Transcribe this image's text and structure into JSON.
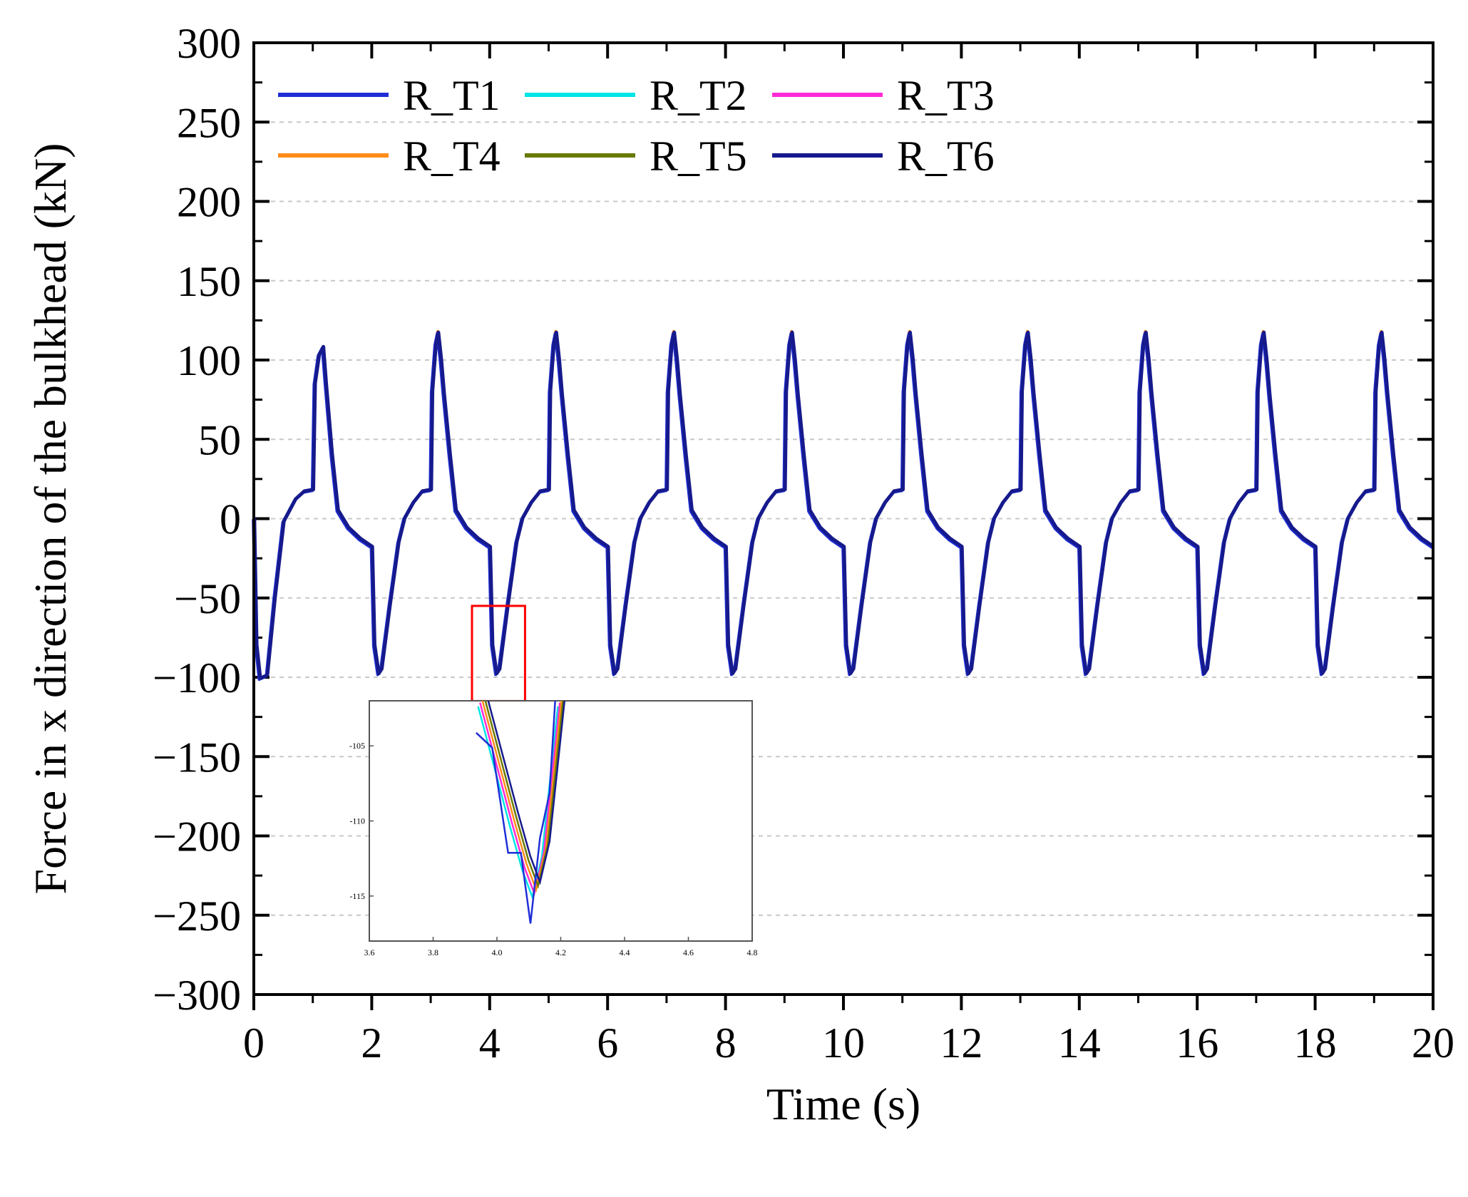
{
  "chart_data": {
    "type": "line",
    "title": "",
    "xlabel": "Time (s)",
    "ylabel": "Force in x direction of the bulkhead (kN)",
    "xlim": [
      0,
      20
    ],
    "ylim": [
      -300,
      300
    ],
    "xticks": [
      0,
      2,
      4,
      6,
      8,
      10,
      12,
      14,
      16,
      18,
      20
    ],
    "yticks": [
      300,
      250,
      200,
      150,
      100,
      50,
      0,
      -50,
      -100,
      -150,
      -200,
      -250,
      -300
    ],
    "ytick_labels": [
      "300",
      "250",
      "200",
      "150",
      "100",
      "50",
      "0",
      "−50",
      "−100",
      "−150",
      "−200",
      "−250",
      "−300"
    ],
    "grid": "horizontal dashed",
    "legend_position": "top-left",
    "period_s": 2.0,
    "cycle_shape_s_kN": [
      [
        0.0,
        -18
      ],
      [
        0.04,
        -80
      ],
      [
        0.11,
        -108
      ],
      [
        0.16,
        -95
      ],
      [
        0.3,
        -55
      ],
      [
        0.45,
        -15
      ],
      [
        0.55,
        0
      ],
      [
        0.7,
        10
      ],
      [
        0.85,
        17
      ],
      [
        1.0,
        18
      ],
      [
        1.02,
        80
      ],
      [
        1.08,
        106
      ],
      [
        1.12,
        113
      ],
      [
        1.17,
        100
      ],
      [
        1.22,
        78
      ],
      [
        1.32,
        40
      ],
      [
        1.42,
        5
      ],
      [
        1.6,
        -6
      ],
      [
        1.8,
        -13
      ],
      [
        2.0,
        -18
      ]
    ],
    "first_cycle_shape_s_kN": [
      [
        0.0,
        0
      ],
      [
        0.04,
        -80
      ],
      [
        0.1,
        -101
      ],
      [
        0.22,
        -99
      ],
      [
        0.35,
        -50
      ],
      [
        0.5,
        -2
      ],
      [
        0.7,
        12
      ],
      [
        0.85,
        17
      ],
      [
        1.0,
        18
      ],
      [
        1.03,
        85
      ],
      [
        1.1,
        103
      ],
      [
        1.17,
        108
      ],
      [
        1.22,
        84
      ],
      [
        1.32,
        40
      ],
      [
        1.42,
        5
      ],
      [
        1.6,
        -6
      ],
      [
        1.8,
        -13
      ],
      [
        2.0,
        -18
      ]
    ],
    "series": [
      {
        "name": "R_T1",
        "color": "#1f2fd6",
        "peak_max_kN": 117,
        "peak_min_kN": -118
      },
      {
        "name": "R_T2",
        "color": "#00e5e5",
        "peak_max_kN": 117,
        "peak_min_kN": -120
      },
      {
        "name": "R_T3",
        "color": "#ff2bd6",
        "peak_max_kN": 118,
        "peak_min_kN": -119
      },
      {
        "name": "R_T4",
        "color": "#ff8c1a",
        "peak_max_kN": 118,
        "peak_min_kN": -119
      },
      {
        "name": "R_T5",
        "color": "#6b7a00",
        "peak_max_kN": 117,
        "peak_min_kN": -118
      },
      {
        "name": "R_T6",
        "color": "#161a8c",
        "peak_max_kN": 117,
        "peak_min_kN": -118
      }
    ],
    "zoom_box": {
      "x_range": [
        3.7,
        4.6
      ],
      "y_range": [
        -115,
        -55
      ],
      "color": "#ff0000"
    },
    "inset": {
      "xlim": [
        3.6,
        4.8
      ],
      "ylim": [
        -118,
        -102
      ],
      "xticks": [
        3.6,
        3.8,
        4.0,
        4.2,
        4.4,
        4.6,
        4.8
      ],
      "xtick_labels": [
        "3.6",
        "3.8",
        "4.0",
        "4.2",
        "4.4",
        "4.6",
        "4.8"
      ],
      "yticks": [
        -105,
        -110,
        -115
      ],
      "ytick_labels": [
        "-105",
        "-110",
        "-115"
      ],
      "curve_kN": [
        [
          3.95,
          -102
        ],
        [
          4.0,
          -106
        ],
        [
          4.05,
          -110
        ],
        [
          4.09,
          -113
        ],
        [
          4.12,
          -114.7
        ],
        [
          4.15,
          -112
        ],
        [
          4.18,
          -106
        ],
        [
          4.2,
          -102
        ]
      ]
    }
  }
}
